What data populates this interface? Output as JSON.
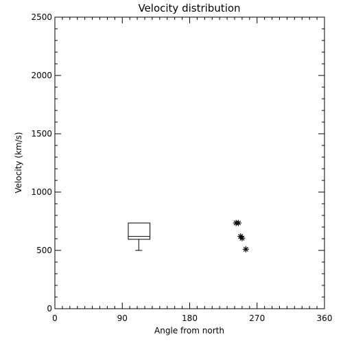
{
  "chart_data": {
    "type": "scatter",
    "title": "Velocity distribution",
    "xlabel": "Angle from north",
    "ylabel": "Velocity (km/s)",
    "xlim": [
      0,
      360
    ],
    "ylim": [
      0,
      2500
    ],
    "x_ticks": [
      0,
      90,
      180,
      270,
      360
    ],
    "x_tick_labels": [
      "0",
      "90",
      "180",
      "270",
      "360"
    ],
    "y_ticks": [
      0,
      500,
      1000,
      1500,
      2000,
      2500
    ],
    "y_tick_labels": [
      "0",
      "500",
      "1000",
      "1500",
      "2000",
      "2500"
    ],
    "boxplot": {
      "x_center": 112,
      "x_range": [
        98,
        127
      ],
      "q1": 595,
      "median": 620,
      "q3": 735,
      "whisker_low": 500,
      "whisker_high": 735
    },
    "points": [
      {
        "x": 242,
        "y": 735
      },
      {
        "x": 245,
        "y": 735
      },
      {
        "x": 248,
        "y": 620
      },
      {
        "x": 250,
        "y": 605
      },
      {
        "x": 255,
        "y": 510
      }
    ],
    "marker": "asterisk",
    "grid": false,
    "colors": {
      "foreground": "#000000",
      "background": "#ffffff"
    }
  }
}
